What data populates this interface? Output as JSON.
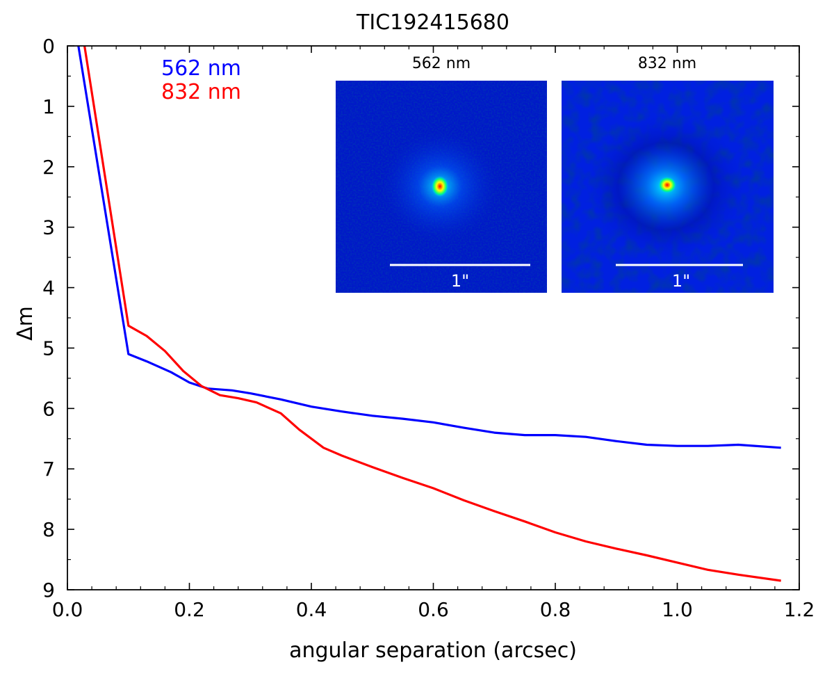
{
  "chart_data": {
    "type": "line",
    "title": "TIC192415680",
    "xlabel": "angular separation (arcsec)",
    "ylabel": "Δm",
    "xlim": [
      0.0,
      1.2
    ],
    "ylim": [
      9,
      0
    ],
    "y_inverted": true,
    "x_ticks": [
      "0.0",
      "0.2",
      "0.4",
      "0.6",
      "0.8",
      "1.0",
      "1.2"
    ],
    "x_tick_values": [
      0.0,
      0.2,
      0.4,
      0.6,
      0.8,
      1.0,
      1.2
    ],
    "y_ticks": [
      "0",
      "1",
      "2",
      "3",
      "4",
      "5",
      "6",
      "7",
      "8",
      "9"
    ],
    "y_tick_values": [
      0,
      1,
      2,
      3,
      4,
      5,
      6,
      7,
      8,
      9
    ],
    "legend_position": "top-left",
    "series": [
      {
        "name": "562 nm",
        "color": "#0000ff",
        "x": [
          0.018,
          0.1,
          0.13,
          0.17,
          0.2,
          0.23,
          0.27,
          0.3,
          0.35,
          0.4,
          0.45,
          0.5,
          0.55,
          0.6,
          0.65,
          0.7,
          0.75,
          0.8,
          0.85,
          0.9,
          0.95,
          1.0,
          1.05,
          1.1,
          1.17
        ],
        "values": [
          0.0,
          5.1,
          5.22,
          5.4,
          5.57,
          5.67,
          5.7,
          5.75,
          5.85,
          5.97,
          6.05,
          6.12,
          6.17,
          6.23,
          6.32,
          6.4,
          6.44,
          6.44,
          6.47,
          6.54,
          6.6,
          6.62,
          6.62,
          6.6,
          6.65
        ]
      },
      {
        "name": "832 nm",
        "color": "#ff0000",
        "x": [
          0.028,
          0.1,
          0.13,
          0.16,
          0.19,
          0.22,
          0.25,
          0.28,
          0.31,
          0.35,
          0.38,
          0.42,
          0.45,
          0.5,
          0.55,
          0.6,
          0.65,
          0.7,
          0.75,
          0.8,
          0.85,
          0.9,
          0.95,
          1.0,
          1.05,
          1.1,
          1.17
        ],
        "values": [
          0.0,
          4.63,
          4.8,
          5.05,
          5.38,
          5.63,
          5.78,
          5.83,
          5.9,
          6.08,
          6.35,
          6.65,
          6.78,
          6.97,
          7.15,
          7.32,
          7.52,
          7.7,
          7.87,
          8.05,
          8.2,
          8.32,
          8.43,
          8.55,
          8.67,
          8.75,
          8.85
        ]
      }
    ],
    "insets": [
      {
        "label": "562 nm",
        "scale_label": "1\"",
        "colormap": "jet"
      },
      {
        "label": "832 nm",
        "scale_label": "1\"",
        "colormap": "jet"
      }
    ]
  }
}
